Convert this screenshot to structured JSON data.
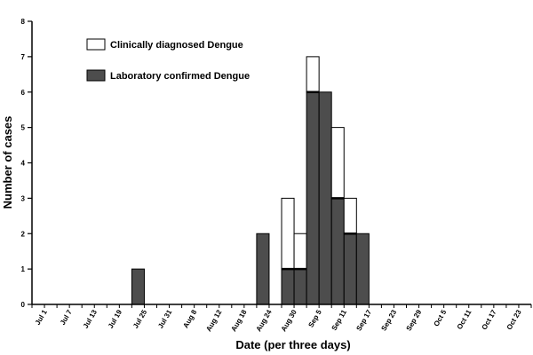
{
  "chart_data": {
    "type": "bar",
    "stacked": true,
    "xlabel": "Date (per three days)",
    "ylabel": "Number of cases",
    "ylim": [
      0,
      8
    ],
    "yticks": [
      0,
      1,
      2,
      3,
      4,
      5,
      6,
      7,
      8
    ],
    "x_tick_labels": [
      "Jul 1",
      "Jul 7",
      "Jul 13",
      "Jul 19",
      "Jul 25",
      "Jul 31",
      "Aug 8",
      "Aug 12",
      "Aug 18",
      "Aug 24",
      "Aug 30",
      "Sep 5",
      "Sep 11",
      "Sep 17",
      "Sep 23",
      "Sep 29",
      "Oct 5",
      "Oct 11",
      "Oct 17",
      "Oct 23"
    ],
    "bin_count": 40,
    "grid": false,
    "legend_position": "top-left",
    "colors": {
      "confirmed": "#4d4d4d",
      "clinical": "#ffffff",
      "outline": "#000000"
    },
    "series": [
      {
        "name": "Laboratory confirmed Dengue",
        "values": [
          0,
          0,
          0,
          0,
          0,
          0,
          0,
          0,
          1,
          0,
          0,
          0,
          0,
          0,
          0,
          0,
          0,
          0,
          2,
          0,
          1,
          1,
          6,
          6,
          3,
          2,
          2,
          0,
          0,
          0,
          0,
          0,
          0,
          0,
          0,
          0,
          0,
          0,
          0,
          0
        ]
      },
      {
        "name": "Clinically diagnosed Dengue",
        "values": [
          0,
          0,
          0,
          0,
          0,
          0,
          0,
          0,
          0,
          0,
          0,
          0,
          0,
          0,
          0,
          0,
          0,
          0,
          0,
          0,
          2,
          1,
          1,
          0,
          2,
          1,
          0,
          0,
          0,
          0,
          0,
          0,
          0,
          0,
          0,
          0,
          0,
          0,
          0,
          0
        ]
      }
    ]
  }
}
